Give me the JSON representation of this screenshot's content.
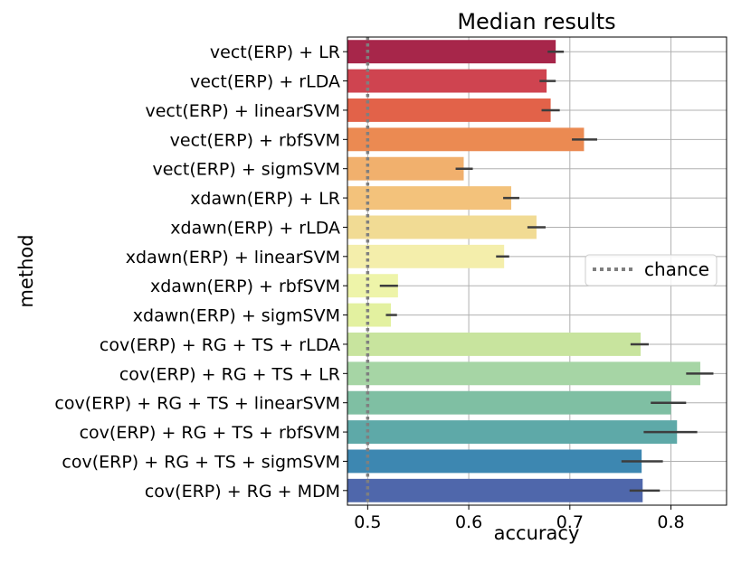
{
  "chart_data": {
    "type": "bar",
    "orientation": "horizontal",
    "title": "Median results",
    "xlabel": "accuracy",
    "ylabel": "method",
    "xlim": [
      0.48,
      0.855
    ],
    "xticks": [
      0.5,
      0.6,
      0.7,
      0.8
    ],
    "xtick_labels": [
      "0.5",
      "0.6",
      "0.7",
      "0.8"
    ],
    "grid": true,
    "categories": [
      "vect(ERP) + LR",
      "vect(ERP) + rLDA",
      "vect(ERP) + linearSVM",
      "vect(ERP) + rbfSVM",
      "vect(ERP) + sigmSVM",
      "xdawn(ERP) + LR",
      "xdawn(ERP) + rLDA",
      "xdawn(ERP) + linearSVM",
      "xdawn(ERP) + rbfSVM",
      "xdawn(ERP) + sigmSVM",
      "cov(ERP) + RG + TS + rLDA",
      "cov(ERP) + RG + TS + LR",
      "cov(ERP) + RG + TS + linearSVM",
      "cov(ERP) + RG + TS + rbfSVM",
      "cov(ERP) + RG + TS + sigmSVM",
      "cov(ERP) + RG + MDM"
    ],
    "values": [
      0.686,
      0.677,
      0.681,
      0.714,
      0.595,
      0.642,
      0.667,
      0.635,
      0.53,
      0.523,
      0.77,
      0.829,
      0.8,
      0.806,
      0.771,
      0.772
    ],
    "error_low": [
      0.678,
      0.67,
      0.672,
      0.702,
      0.587,
      0.634,
      0.658,
      0.627,
      0.512,
      0.518,
      0.76,
      0.815,
      0.78,
      0.773,
      0.751,
      0.759
    ],
    "error_high": [
      0.694,
      0.686,
      0.69,
      0.727,
      0.604,
      0.65,
      0.676,
      0.64,
      0.53,
      0.529,
      0.778,
      0.842,
      0.815,
      0.826,
      0.792,
      0.789
    ],
    "colors": [
      "#a7264a",
      "#cf4450",
      "#e26249",
      "#eb8a52",
      "#f1b06d",
      "#f3c27b",
      "#f1db94",
      "#f4eeab",
      "#eef4a9",
      "#e3f1a0",
      "#c8e49e",
      "#a6d5a5",
      "#7fbfa3",
      "#5ea9a8",
      "#3d87b1",
      "#4f67ab"
    ],
    "reference_line": {
      "label": "chance",
      "x": 0.5,
      "color": "#7f7f7f",
      "style": "dotted"
    },
    "legend": {
      "position": "center-right",
      "entries": [
        "chance"
      ]
    }
  }
}
